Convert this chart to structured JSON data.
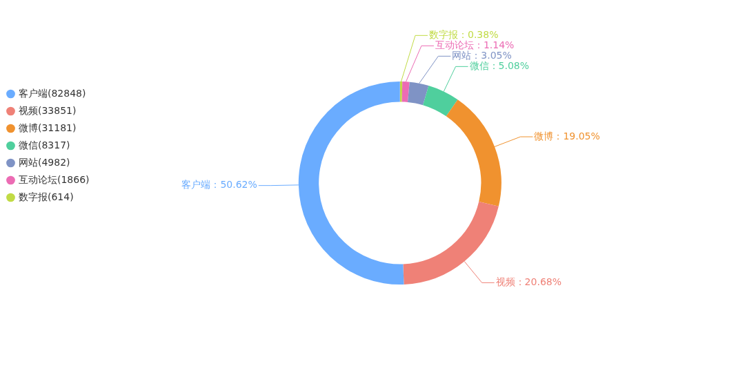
{
  "chart_data": {
    "type": "donut",
    "categories": [
      "客户端(82848)",
      "视频(33851)",
      "微博(31181)",
      "微信(8317)",
      "网站(4982)",
      "互动论坛(1866)",
      "数字报(614)"
    ],
    "values": [
      50.62,
      20.68,
      19.05,
      5.08,
      3.05,
      1.14,
      0.38
    ],
    "colors": [
      "#6aacff",
      "#ef8177",
      "#f0922f",
      "#4fcf9d",
      "#7f93c5",
      "#ec6cb4",
      "#c1db45"
    ],
    "value_labels": [
      "客户端：50.62%",
      "视频：20.68%",
      "微博：19.05%",
      "微信：5.08%",
      "网站：3.05%",
      "互动论坛：1.14%",
      "数字报：0.38%"
    ],
    "legend": "top left"
  }
}
